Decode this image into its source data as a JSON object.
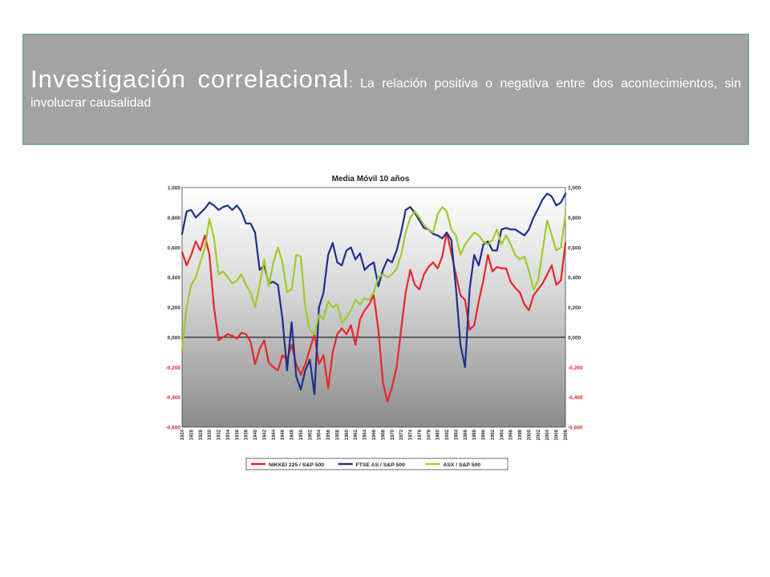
{
  "header": {
    "title": "Investigación correlacional",
    "subtitle": ": La relación positiva o negativa entre dos acontecimientos, sin involucrar causalidad"
  },
  "chart_data": {
    "type": "line",
    "title": "Media Móvil 10 años",
    "ylim": [
      -0.6,
      1.0
    ],
    "yticks": [
      "1,000",
      "0,800",
      "0,600",
      "0,400",
      "0,200",
      "0,000",
      "-0,200",
      "-0,400",
      "-0,600"
    ],
    "ytick_values": [
      1.0,
      0.8,
      0.6,
      0.4,
      0.2,
      0.0,
      -0.2,
      -0.4,
      -0.6
    ],
    "xlim": [
      1924,
      2008
    ],
    "xticks": [
      1924,
      1926,
      1928,
      1930,
      1932,
      1934,
      1936,
      1938,
      1940,
      1942,
      1944,
      1946,
      1948,
      1950,
      1952,
      1954,
      1956,
      1958,
      1960,
      1962,
      1964,
      1966,
      1968,
      1970,
      1972,
      1974,
      1976,
      1978,
      1980,
      1982,
      1984,
      1986,
      1988,
      1990,
      1992,
      1994,
      1996,
      1998,
      2000,
      2002,
      2004,
      2006,
      2008
    ],
    "legend_position": "bottom",
    "series": [
      {
        "name": "NIKKEI 225 / S&P 500",
        "color": "#e8262b",
        "x": [
          1924,
          1925,
          1926,
          1927,
          1928,
          1929,
          1930,
          1931,
          1932,
          1933,
          1934,
          1935,
          1936,
          1937,
          1938,
          1939,
          1940,
          1941,
          1942,
          1943,
          1944,
          1945,
          1946,
          1947,
          1948,
          1949,
          1950,
          1951,
          1952,
          1953,
          1954,
          1955,
          1956,
          1957,
          1958,
          1959,
          1960,
          1961,
          1962,
          1963,
          1964,
          1965,
          1966,
          1967,
          1968,
          1969,
          1970,
          1971,
          1972,
          1973,
          1974,
          1975,
          1976,
          1977,
          1978,
          1979,
          1980,
          1981,
          1982,
          1983,
          1984,
          1985,
          1986,
          1987,
          1988,
          1989,
          1990,
          1991,
          1992,
          1993,
          1994,
          1995,
          1996,
          1997,
          1998,
          1999,
          2000,
          2001,
          2002,
          2003,
          2004,
          2005,
          2006,
          2007,
          2008
        ],
        "values": [
          0.57,
          0.48,
          0.55,
          0.64,
          0.58,
          0.68,
          0.55,
          0.2,
          -0.02,
          0.0,
          0.02,
          0.01,
          -0.01,
          0.03,
          0.02,
          -0.03,
          -0.18,
          -0.08,
          -0.02,
          -0.17,
          -0.2,
          -0.22,
          -0.12,
          -0.15,
          -0.05,
          -0.18,
          -0.25,
          -0.18,
          -0.08,
          0.02,
          -0.18,
          -0.12,
          -0.34,
          -0.1,
          0.02,
          0.06,
          0.02,
          0.08,
          -0.05,
          0.12,
          0.18,
          0.22,
          0.28,
          0.05,
          -0.3,
          -0.43,
          -0.33,
          -0.2,
          0.05,
          0.3,
          0.45,
          0.35,
          0.32,
          0.42,
          0.47,
          0.5,
          0.46,
          0.54,
          0.7,
          0.56,
          0.42,
          0.28,
          0.25,
          0.05,
          0.08,
          0.24,
          0.38,
          0.55,
          0.44,
          0.47,
          0.46,
          0.46,
          0.37,
          0.33,
          0.3,
          0.22,
          0.18,
          0.28,
          0.32,
          0.36,
          0.42,
          0.48,
          0.35,
          0.38,
          0.63
        ]
      },
      {
        "name": "FTSE AS / S&P 500",
        "color": "#1e2f8c",
        "x": [
          1924,
          1925,
          1926,
          1927,
          1928,
          1929,
          1930,
          1931,
          1932,
          1933,
          1934,
          1935,
          1936,
          1937,
          1938,
          1939,
          1940,
          1941,
          1942,
          1943,
          1944,
          1945,
          1946,
          1947,
          1948,
          1949,
          1950,
          1951,
          1952,
          1953,
          1954,
          1955,
          1956,
          1957,
          1958,
          1959,
          1960,
          1961,
          1962,
          1963,
          1964,
          1965,
          1966,
          1967,
          1968,
          1969,
          1970,
          1971,
          1972,
          1973,
          1974,
          1975,
          1976,
          1977,
          1978,
          1979,
          1980,
          1981,
          1982,
          1983,
          1984,
          1985,
          1986,
          1987,
          1988,
          1989,
          1990,
          1991,
          1992,
          1993,
          1994,
          1995,
          1996,
          1997,
          1998,
          1999,
          2000,
          2001,
          2002,
          2003,
          2004,
          2005,
          2006,
          2007,
          2008
        ],
        "values": [
          0.69,
          0.84,
          0.85,
          0.8,
          0.83,
          0.86,
          0.9,
          0.88,
          0.85,
          0.87,
          0.88,
          0.85,
          0.88,
          0.84,
          0.76,
          0.76,
          0.7,
          0.45,
          0.48,
          0.36,
          0.37,
          0.35,
          0.12,
          -0.22,
          0.1,
          -0.26,
          -0.35,
          -0.22,
          -0.15,
          -0.38,
          0.2,
          0.3,
          0.55,
          0.63,
          0.5,
          0.48,
          0.58,
          0.6,
          0.52,
          0.56,
          0.45,
          0.48,
          0.5,
          0.34,
          0.45,
          0.52,
          0.5,
          0.58,
          0.7,
          0.85,
          0.87,
          0.83,
          0.78,
          0.73,
          0.72,
          0.69,
          0.68,
          0.66,
          0.7,
          0.65,
          0.33,
          -0.05,
          -0.2,
          0.32,
          0.55,
          0.48,
          0.62,
          0.64,
          0.58,
          0.58,
          0.72,
          0.73,
          0.72,
          0.72,
          0.7,
          0.68,
          0.72,
          0.8,
          0.86,
          0.92,
          0.96,
          0.94,
          0.88,
          0.9,
          0.96
        ]
      },
      {
        "name": "ASX / S&P 500",
        "color": "#9ccc2c",
        "x": [
          1924,
          1925,
          1926,
          1927,
          1928,
          1929,
          1930,
          1931,
          1932,
          1933,
          1934,
          1935,
          1936,
          1937,
          1938,
          1939,
          1940,
          1941,
          1942,
          1943,
          1944,
          1945,
          1946,
          1947,
          1948,
          1949,
          1950,
          1951,
          1952,
          1953,
          1954,
          1955,
          1956,
          1957,
          1958,
          1959,
          1960,
          1961,
          1962,
          1963,
          1964,
          1965,
          1966,
          1967,
          1968,
          1969,
          1970,
          1971,
          1972,
          1973,
          1974,
          1975,
          1976,
          1977,
          1978,
          1979,
          1980,
          1981,
          1982,
          1983,
          1984,
          1985,
          1986,
          1987,
          1988,
          1989,
          1990,
          1991,
          1992,
          1993,
          1994,
          1995,
          1996,
          1997,
          1998,
          1999,
          2000,
          2001,
          2002,
          2003,
          2004,
          2005,
          2006,
          2007,
          2008
        ],
        "values": [
          -0.08,
          0.2,
          0.35,
          0.4,
          0.5,
          0.6,
          0.79,
          0.66,
          0.42,
          0.44,
          0.4,
          0.36,
          0.38,
          0.42,
          0.35,
          0.3,
          0.2,
          0.35,
          0.52,
          0.34,
          0.5,
          0.6,
          0.5,
          0.3,
          0.32,
          0.55,
          0.54,
          0.2,
          0.05,
          0.02,
          0.15,
          0.12,
          0.24,
          0.2,
          0.22,
          0.1,
          0.13,
          0.18,
          0.25,
          0.22,
          0.26,
          0.25,
          0.3,
          0.4,
          0.42,
          0.4,
          0.42,
          0.46,
          0.55,
          0.7,
          0.8,
          0.84,
          0.8,
          0.75,
          0.72,
          0.7,
          0.82,
          0.87,
          0.84,
          0.72,
          0.68,
          0.55,
          0.62,
          0.66,
          0.7,
          0.68,
          0.64,
          0.62,
          0.65,
          0.72,
          0.62,
          0.68,
          0.62,
          0.55,
          0.52,
          0.54,
          0.44,
          0.32,
          0.38,
          0.58,
          0.78,
          0.68,
          0.58,
          0.6,
          0.82
        ]
      }
    ]
  }
}
